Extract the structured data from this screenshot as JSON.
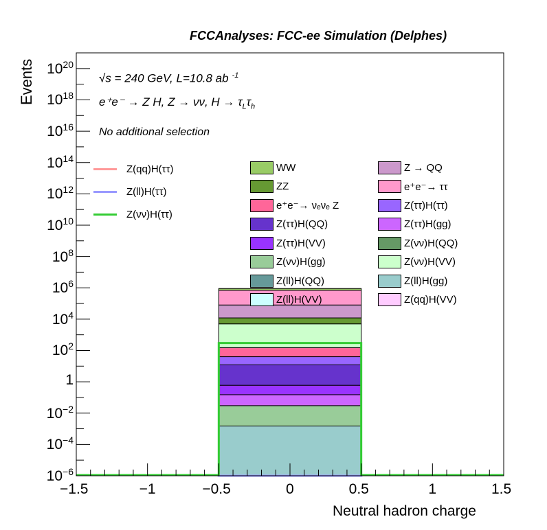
{
  "header": {
    "title": "FCCAnalyses: FCC-ee Simulation (Delphes)"
  },
  "annotations": {
    "energy": "√s = 240 GeV, L=10.8 ab",
    "energy_sup": "-1",
    "process": "e⁺e⁻ → Z H, Z → νν, H → τ_L τ_h",
    "process_main": "e⁺e⁻ → Z H, Z → νν, H → τ",
    "process_sub1": "L",
    "process_tau2": "τ",
    "process_sub2": "h",
    "selection": "No additional selection"
  },
  "chart_data": {
    "type": "bar",
    "xlabel": "Neutral hadron charge",
    "ylabel": "Events",
    "xlim": [
      -1.5,
      1.5
    ],
    "ylim": [
      1e-06,
      1e+21
    ],
    "yscale": "log",
    "x_ticks": [
      "−1.5",
      "−1",
      "−0.5",
      "0",
      "0.5",
      "1",
      "1.5"
    ],
    "y_ticks": [
      {
        "base": "10",
        "exp": "−6",
        "value": 1e-06
      },
      {
        "base": "10",
        "exp": "−4",
        "value": 0.0001
      },
      {
        "base": "10",
        "exp": "−2",
        "value": 0.01
      },
      {
        "base": "1",
        "exp": "",
        "value": 1
      },
      {
        "base": "10",
        "exp": "2",
        "value": 100.0
      },
      {
        "base": "10",
        "exp": "4",
        "value": 10000.0
      },
      {
        "base": "10",
        "exp": "6",
        "value": 1000000.0
      },
      {
        "base": "10",
        "exp": "8",
        "value": 100000000.0
      },
      {
        "base": "10",
        "exp": "10",
        "value": 10000000000.0
      },
      {
        "base": "10",
        "exp": "12",
        "value": 1000000000000.0
      },
      {
        "base": "10",
        "exp": "14",
        "value": 100000000000000.0
      },
      {
        "base": "10",
        "exp": "16",
        "value": 1e+16
      },
      {
        "base": "10",
        "exp": "18",
        "value": 1e+18
      },
      {
        "base": "10",
        "exp": "20",
        "value": 1e+20
      }
    ],
    "bin": [
      -0.5,
      0.5
    ],
    "stack_bounds": [
      {
        "name": "Z(ll)H(gg)",
        "color": "#99cccc",
        "top": 0.0015
      },
      {
        "name": "Z(νν)H(gg)",
        "color": "#99cc99",
        "top": 0.03
      },
      {
        "name": "Z(ττ)H(gg)",
        "color": "#cc66ff",
        "top": 0.15
      },
      {
        "name": "Z(ττ)H(VV)",
        "color": "#9933ff",
        "top": 0.6
      },
      {
        "name": "Z(ττ)H(QQ)",
        "color": "#6633cc",
        "top": 12
      },
      {
        "name": "Z(ττ)H(ττ)",
        "color": "#9966ff",
        "top": 40
      },
      {
        "name": "e⁺e⁻→ νₑνₑ Z",
        "color": "#ff6699",
        "top": 150
      },
      {
        "name": "Z(νν)H(VV)",
        "color": "#ccffcc",
        "top": 5000
      },
      {
        "name": "ZZ",
        "color": "#669933",
        "top": 12000
      },
      {
        "name": "Z → QQ",
        "color": "#cc99cc",
        "top": 80000
      },
      {
        "name": "e⁺e⁻→ ττ",
        "color": "#ff99cc",
        "top": 700000
      },
      {
        "name": "WW",
        "color": "#99cc66",
        "top": 900000
      }
    ],
    "signal_lines": [
      {
        "name": "Z(νν)H(ττ)",
        "color": "#33cc33",
        "value": 300
      },
      {
        "name": "Z(ll)H(ττ)",
        "color": "#9999ff",
        "value": 1e-06
      },
      {
        "name": "Z(qq)H(ττ)",
        "color": "#ff9999",
        "value": 1e-06
      }
    ],
    "legend_left": [
      {
        "label": "Z(qq)H(ττ)",
        "color": "#ff9999"
      },
      {
        "label": "Z(ll)H(ττ)",
        "color": "#9999ff"
      },
      {
        "label": "Z(νν)H(ττ)",
        "color": "#33cc33"
      }
    ],
    "legend_middle": [
      {
        "label": "WW",
        "color": "#99cc66"
      },
      {
        "label": "ZZ",
        "color": "#669933"
      },
      {
        "label": "e⁺e⁻→ νₑνₑ Z",
        "color": "#ff6699"
      },
      {
        "label": "Z(ττ)H(QQ)",
        "color": "#6633cc"
      },
      {
        "label": "Z(ττ)H(VV)",
        "color": "#9933ff"
      },
      {
        "label": "Z(νν)H(gg)",
        "color": "#99cc99"
      },
      {
        "label": "Z(ll)H(QQ)",
        "color": "#669999"
      },
      {
        "label": "Z(ll)H(VV)",
        "color": "#ccffff"
      }
    ],
    "legend_right": [
      {
        "label": "Z → QQ",
        "color": "#cc99cc"
      },
      {
        "label": "e⁺e⁻→ ττ",
        "color": "#ff99cc"
      },
      {
        "label": "Z(ττ)H(ττ)",
        "color": "#9966ff"
      },
      {
        "label": "Z(ττ)H(gg)",
        "color": "#cc66ff"
      },
      {
        "label": "Z(νν)H(QQ)",
        "color": "#669966"
      },
      {
        "label": "Z(νν)H(VV)",
        "color": "#ccffcc"
      },
      {
        "label": "Z(ll)H(gg)",
        "color": "#99cccc"
      },
      {
        "label": "Z(qq)H(VV)",
        "color": "#ffccff"
      }
    ]
  }
}
